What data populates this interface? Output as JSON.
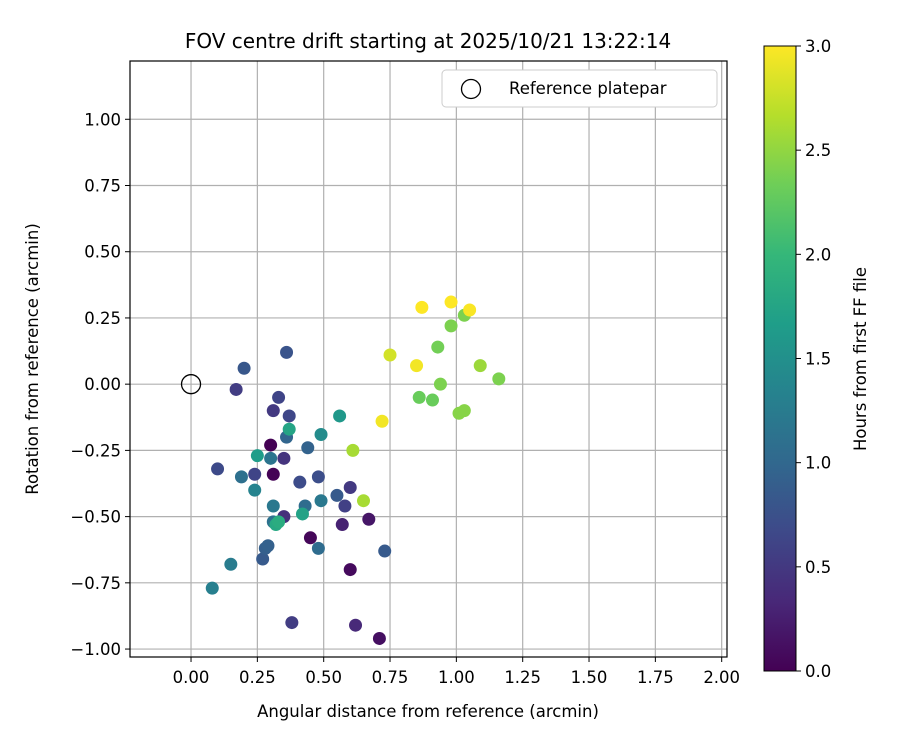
{
  "chart_data": {
    "type": "scatter",
    "title": "FOV centre drift starting at 2025/10/21 13:22:14",
    "xlabel": "Angular distance from reference (arcmin)",
    "ylabel": "Rotation from reference (arcmin)",
    "xlim": [
      -0.23,
      2.02
    ],
    "ylim": [
      -1.03,
      1.22
    ],
    "xticks": [
      0.0,
      0.25,
      0.5,
      0.75,
      1.0,
      1.25,
      1.5,
      1.75,
      2.0
    ],
    "xtick_labels": [
      "0.00",
      "0.25",
      "0.50",
      "0.75",
      "1.00",
      "1.25",
      "1.50",
      "1.75",
      "2.00"
    ],
    "yticks": [
      -1.0,
      -0.75,
      -0.5,
      -0.25,
      0.0,
      0.25,
      0.5,
      0.75,
      1.0
    ],
    "ytick_labels": [
      "−1.00",
      "−0.75",
      "−0.50",
      "−0.25",
      "0.00",
      "0.25",
      "0.50",
      "0.75",
      "1.00"
    ],
    "grid": true,
    "legend": {
      "position": "top-right",
      "entries": [
        "Reference platepar"
      ]
    },
    "reference_point": {
      "x": 0.0,
      "y": 0.0,
      "label": "Reference platepar"
    },
    "colorbar": {
      "label": "Hours from first FF file",
      "range": [
        0.0,
        3.0
      ],
      "ticks": [
        0.0,
        0.5,
        1.0,
        1.5,
        2.0,
        2.5,
        3.0
      ],
      "tick_labels": [
        "0.0",
        "0.5",
        "1.0",
        "1.5",
        "2.0",
        "2.5",
        "3.0"
      ],
      "colormap": "viridis",
      "colormap_stops": [
        "#440154",
        "#482878",
        "#3e4989",
        "#31688e",
        "#26828e",
        "#1f9e89",
        "#35b779",
        "#6ece58",
        "#b5de2b",
        "#fde725"
      ]
    },
    "points": [
      {
        "x": 0.3,
        "y": -0.23,
        "t": 0.0
      },
      {
        "x": 0.31,
        "y": -0.34,
        "t": 0.02
      },
      {
        "x": 0.45,
        "y": -0.58,
        "t": 0.05
      },
      {
        "x": 0.6,
        "y": -0.7,
        "t": 0.08
      },
      {
        "x": 0.71,
        "y": -0.96,
        "t": 0.12
      },
      {
        "x": 0.67,
        "y": -0.51,
        "t": 0.18
      },
      {
        "x": 0.57,
        "y": -0.53,
        "t": 0.28
      },
      {
        "x": 0.62,
        "y": -0.91,
        "t": 0.35
      },
      {
        "x": 0.35,
        "y": -0.5,
        "t": 0.4
      },
      {
        "x": 0.35,
        "y": -0.28,
        "t": 0.45
      },
      {
        "x": 0.31,
        "y": -0.1,
        "t": 0.5
      },
      {
        "x": 0.6,
        "y": -0.39,
        "t": 0.5
      },
      {
        "x": 0.17,
        "y": -0.02,
        "t": 0.55
      },
      {
        "x": 0.38,
        "y": -0.9,
        "t": 0.55
      },
      {
        "x": 0.58,
        "y": -0.46,
        "t": 0.58
      },
      {
        "x": 0.24,
        "y": -0.34,
        "t": 0.62
      },
      {
        "x": 0.33,
        "y": -0.05,
        "t": 0.62
      },
      {
        "x": 0.37,
        "y": -0.12,
        "t": 0.65
      },
      {
        "x": 0.1,
        "y": -0.32,
        "t": 0.68
      },
      {
        "x": 0.41,
        "y": -0.37,
        "t": 0.7
      },
      {
        "x": 0.48,
        "y": -0.35,
        "t": 0.72
      },
      {
        "x": 0.36,
        "y": 0.12,
        "t": 0.78
      },
      {
        "x": 0.2,
        "y": 0.06,
        "t": 0.82
      },
      {
        "x": 0.27,
        "y": -0.66,
        "t": 0.85
      },
      {
        "x": 0.55,
        "y": -0.42,
        "t": 0.85
      },
      {
        "x": 0.73,
        "y": -0.63,
        "t": 0.85
      },
      {
        "x": 0.28,
        "y": -0.62,
        "t": 0.9
      },
      {
        "x": 0.29,
        "y": -0.61,
        "t": 0.92
      },
      {
        "x": 0.44,
        "y": -0.24,
        "t": 0.95
      },
      {
        "x": 0.36,
        "y": -0.2,
        "t": 0.98
      },
      {
        "x": 0.48,
        "y": -0.62,
        "t": 1.05
      },
      {
        "x": 0.43,
        "y": -0.46,
        "t": 1.05
      },
      {
        "x": 0.19,
        "y": -0.35,
        "t": 1.1
      },
      {
        "x": 0.31,
        "y": -0.52,
        "t": 1.12
      },
      {
        "x": 0.3,
        "y": -0.28,
        "t": 1.15
      },
      {
        "x": 0.31,
        "y": -0.46,
        "t": 1.2
      },
      {
        "x": 0.49,
        "y": -0.44,
        "t": 1.2
      },
      {
        "x": 0.15,
        "y": -0.68,
        "t": 1.25
      },
      {
        "x": 0.08,
        "y": -0.77,
        "t": 1.3
      },
      {
        "x": 0.24,
        "y": -0.4,
        "t": 1.35
      },
      {
        "x": 0.49,
        "y": -0.19,
        "t": 1.45
      },
      {
        "x": 0.56,
        "y": -0.12,
        "t": 1.6
      },
      {
        "x": 0.25,
        "y": -0.27,
        "t": 1.65
      },
      {
        "x": 0.42,
        "y": -0.49,
        "t": 1.72
      },
      {
        "x": 0.37,
        "y": -0.17,
        "t": 1.75
      },
      {
        "x": 0.32,
        "y": -0.53,
        "t": 1.8
      },
      {
        "x": 0.33,
        "y": -0.52,
        "t": 1.85
      },
      {
        "x": 0.86,
        "y": -0.05,
        "t": 2.3
      },
      {
        "x": 0.91,
        "y": -0.06,
        "t": 2.3
      },
      {
        "x": 0.93,
        "y": 0.14,
        "t": 2.35
      },
      {
        "x": 0.94,
        "y": 0.0,
        "t": 2.4
      },
      {
        "x": 0.98,
        "y": 0.22,
        "t": 2.4
      },
      {
        "x": 1.01,
        "y": -0.11,
        "t": 2.45
      },
      {
        "x": 1.03,
        "y": 0.26,
        "t": 2.4
      },
      {
        "x": 1.03,
        "y": -0.1,
        "t": 2.45
      },
      {
        "x": 1.09,
        "y": 0.07,
        "t": 2.55
      },
      {
        "x": 1.16,
        "y": 0.02,
        "t": 2.4
      },
      {
        "x": 0.61,
        "y": -0.25,
        "t": 2.6
      },
      {
        "x": 0.65,
        "y": -0.44,
        "t": 2.6
      },
      {
        "x": 0.75,
        "y": 0.11,
        "t": 2.8
      },
      {
        "x": 0.72,
        "y": -0.14,
        "t": 2.95
      },
      {
        "x": 0.85,
        "y": 0.07,
        "t": 2.95
      },
      {
        "x": 0.87,
        "y": 0.29,
        "t": 3.0
      },
      {
        "x": 0.98,
        "y": 0.31,
        "t": 3.0
      },
      {
        "x": 1.05,
        "y": 0.28,
        "t": 2.98
      }
    ]
  }
}
